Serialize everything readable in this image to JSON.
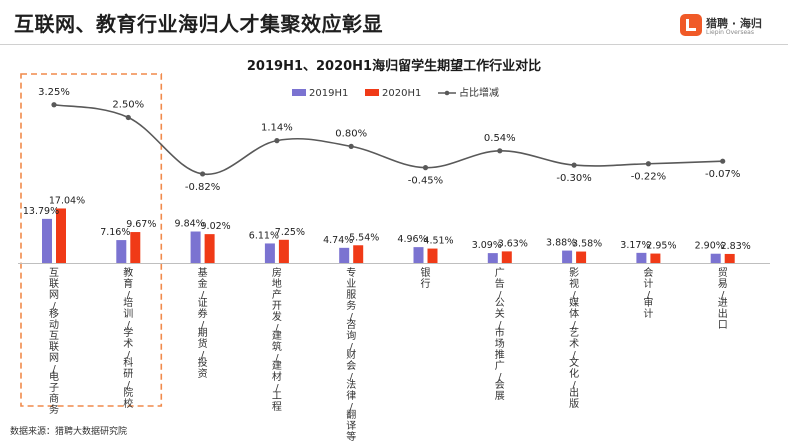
{
  "header": {
    "title": "互联网、教育行业海归人才集聚效应彰显",
    "logo_name": "猎聘 · 海归",
    "logo_sub": "Liepin Overseas"
  },
  "source": "数据来源：猎聘大数据研究院",
  "colors": {
    "series_2019": "#7b73d1",
    "series_2020": "#f03a17",
    "change_line": "#595959",
    "highlight_box": "#f08a4b",
    "logo": "#f05a28"
  },
  "chart_data": {
    "type": "bar",
    "title": "2019H1、2020H1海归留学生期望工作行业对比",
    "categories": [
      "互联网/移动互联网/电子商务",
      "教育/培训/学术/科研/院校",
      "基金/证券/期货/投资",
      "房地产开发/建筑/建材/工程",
      "专业服务/咨询/财会/法律/翻译等",
      "银行",
      "广告/公关/市场推广/会展",
      "影视/媒体/艺术/文化/出版",
      "会计/审计",
      "贸易/进出口"
    ],
    "series": [
      {
        "name": "2019H1",
        "type": "bar",
        "values": [
          13.79,
          7.16,
          9.84,
          6.11,
          4.74,
          4.96,
          3.09,
          3.88,
          3.17,
          2.9
        ],
        "labels": [
          "13.79%",
          "7.16%",
          "9.84%",
          "6.11%",
          "4.74%",
          "4.96%",
          "3.09%",
          "3.88%",
          "3.17%",
          "2.90%"
        ]
      },
      {
        "name": "2020H1",
        "type": "bar",
        "values": [
          17.04,
          9.67,
          9.02,
          7.25,
          5.54,
          4.51,
          3.63,
          3.58,
          2.95,
          2.83
        ],
        "labels": [
          "17.04%",
          "9.67%",
          "9.02%",
          "7.25%",
          "5.54%",
          "4.51%",
          "3.63%",
          "3.58%",
          "2.95%",
          "2.83%"
        ]
      },
      {
        "name": "占比增减",
        "type": "line",
        "values": [
          3.25,
          2.5,
          -0.82,
          1.14,
          0.8,
          -0.45,
          0.54,
          -0.3,
          -0.22,
          -0.07
        ],
        "labels": [
          "3.25%",
          "2.50%",
          "-0.82%",
          "1.14%",
          "0.80%",
          "-0.45%",
          "0.54%",
          "-0.30%",
          "-0.22%",
          "-0.07%"
        ]
      }
    ],
    "highlighted_categories": [
      0,
      1
    ],
    "legend_position": "top-center",
    "grid": false
  }
}
